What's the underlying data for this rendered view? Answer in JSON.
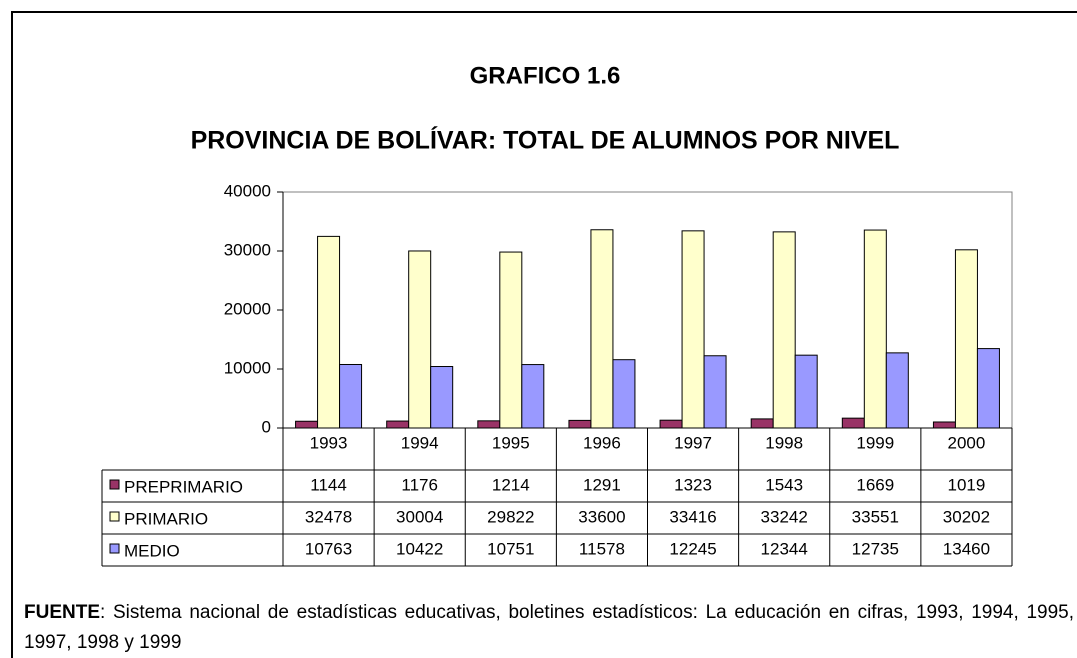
{
  "chart_data": {
    "type": "bar",
    "title": "GRAFICO 1.6",
    "subtitle": "PROVINCIA DE BOLÍVAR: TOTAL DE ALUMNOS POR NIVEL",
    "categories": [
      "1993",
      "1994",
      "1995",
      "1996",
      "1997",
      "1998",
      "1999",
      "2000"
    ],
    "series": [
      {
        "name": "PREPRIMARIO",
        "color": "#993366",
        "values": [
          1144,
          1176,
          1214,
          1291,
          1323,
          1543,
          1669,
          1019
        ]
      },
      {
        "name": "PRIMARIO",
        "color": "#ffffcc",
        "values": [
          32478,
          30004,
          29822,
          33600,
          33416,
          33242,
          33551,
          30202
        ]
      },
      {
        "name": "MEDIO",
        "color": "#9999ff",
        "values": [
          10763,
          10422,
          10751,
          11578,
          12245,
          12344,
          12735,
          13460
        ]
      }
    ],
    "ylim": [
      0,
      40000
    ],
    "yticks": [
      0,
      10000,
      20000,
      30000,
      40000
    ]
  },
  "footer": {
    "label": "FUENTE",
    "text": ": Sistema nacional de estadísticas educativas, boletines estadísticos: La educación en cifras, 1993, 1994, 1995, 1997, 1998 y 1999"
  }
}
